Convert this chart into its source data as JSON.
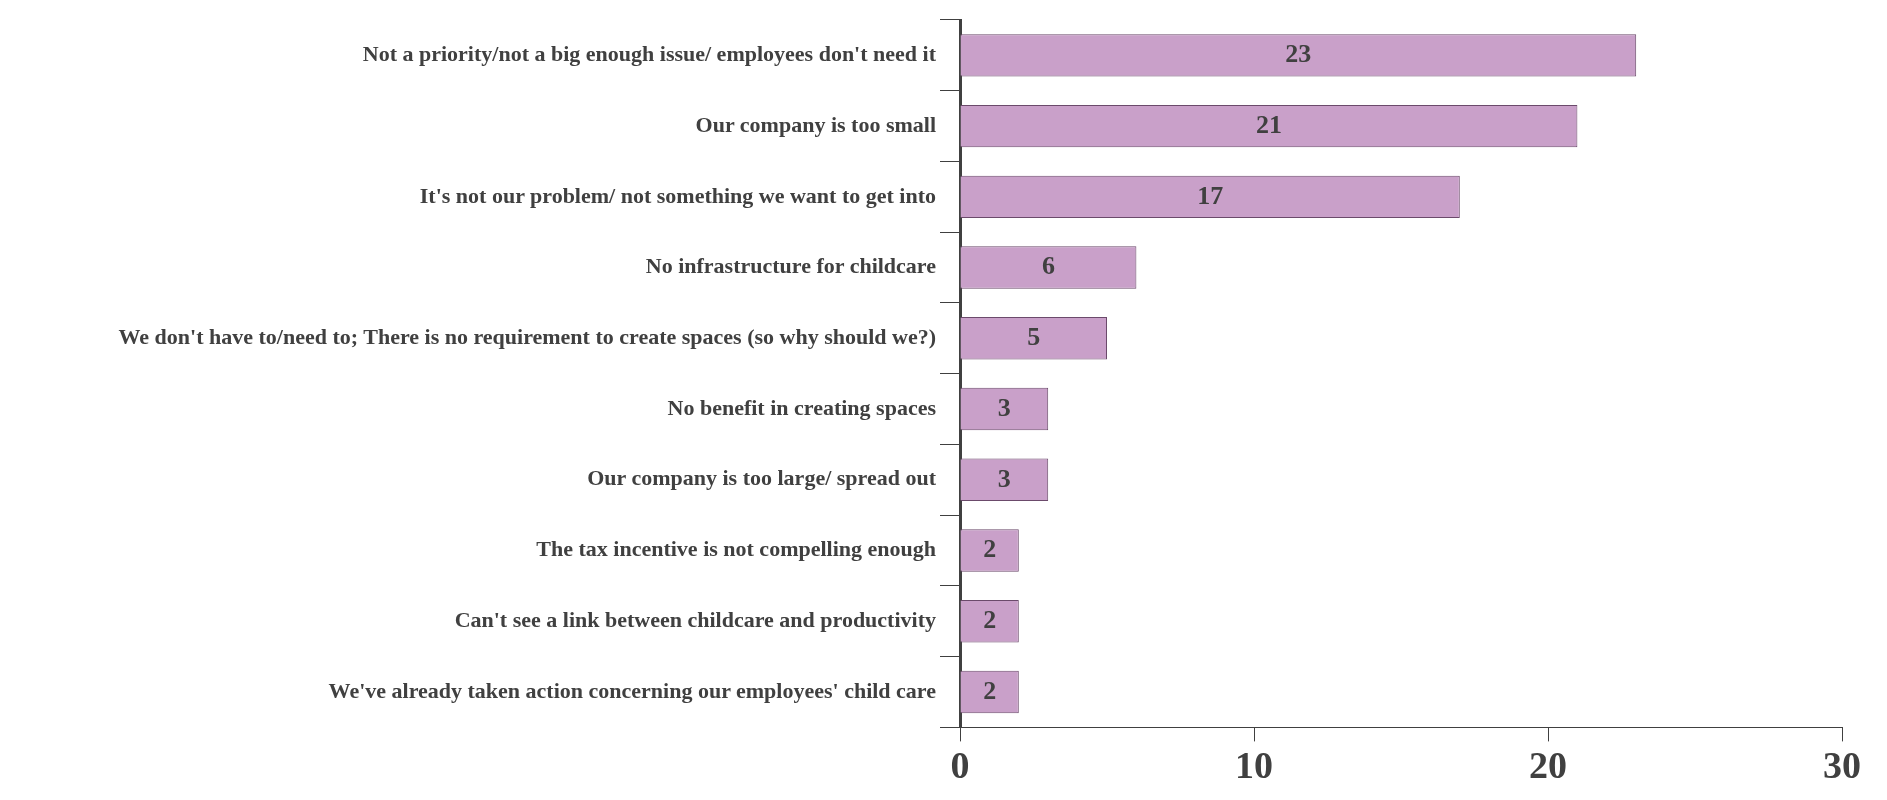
{
  "chart_data": {
    "type": "bar",
    "orientation": "horizontal",
    "categories": [
      "Not a priority/not a big enough issue/ employees don't need it",
      "Our company is too small",
      "It's not our problem/ not something we want to get into",
      "No infrastructure for childcare",
      "We don't have to/need to; There is no requirement to create spaces (so why should we?)",
      "No benefit in creating spaces",
      "Our company is too large/ spread out",
      "The tax incentive is not compelling enough",
      "Can't see a link between childcare and productivity",
      "We've already taken action concerning our employees' child care"
    ],
    "values": [
      23,
      21,
      17,
      6,
      5,
      3,
      3,
      2,
      2,
      2
    ],
    "color": "#c9a0c9",
    "xlim": [
      0,
      30
    ],
    "xticks": [
      0,
      10,
      20,
      30
    ],
    "grid": false,
    "legend": false,
    "data_labels": true
  }
}
